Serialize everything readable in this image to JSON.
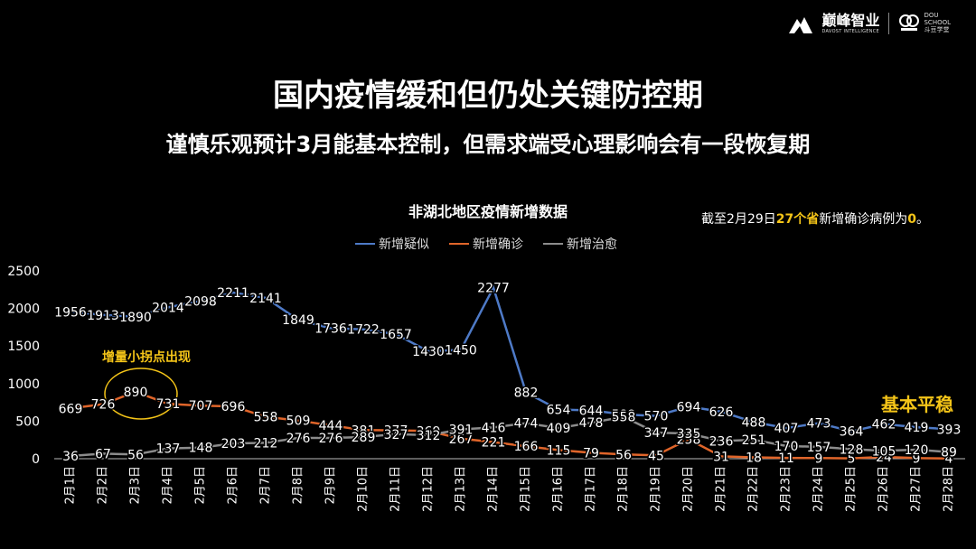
{
  "brand": {
    "name_cn": "巅峰智业",
    "name_en": "DAVOST INTELLIGENCE",
    "school_en_1": "DOU",
    "school_en_2": "SCHOOL",
    "school_cn": "斗豆学堂"
  },
  "title": "国内疫情缓和但仍处关键防控期",
  "subtitle": "谨慎乐观预计3月能基本控制，但需求端受心理影响会有一段恢复期",
  "note": {
    "prefix": "截至2月29日",
    "highlight": "27个省",
    "middle": "新增确诊病例为",
    "value": "0",
    "suffix": "。"
  },
  "annotations": {
    "inflection": "增量小拐点出现",
    "stable": "基本平稳"
  },
  "colors": {
    "suspected": "#4e7ac7",
    "confirmed": "#e0652a",
    "cured": "#8c8c8c",
    "highlight": "#f5c518"
  },
  "chart_data": {
    "type": "line",
    "title": "非湖北地区疫情新增数据",
    "categories": [
      "2月1日",
      "2月2日",
      "2月3日",
      "2月4日",
      "2月5日",
      "2月6日",
      "2月7日",
      "2月8日",
      "2月9日",
      "2月10日",
      "2月11日",
      "2月12日",
      "2月13日",
      "2月14日",
      "2月15日",
      "2月16日",
      "2月17日",
      "2月18日",
      "2月19日",
      "2月20日",
      "2月21日",
      "2月22日",
      "2月23日",
      "2月24日",
      "2月25日",
      "2月26日",
      "2月27日",
      "2月28日"
    ],
    "series": [
      {
        "name": "新增疑似",
        "values": [
          1956,
          1913,
          1890,
          2014,
          2098,
          2211,
          2141,
          1849,
          1736,
          1722,
          1657,
          1430,
          1450,
          2277,
          882,
          654,
          644,
          589,
          570,
          694,
          626,
          488,
          407,
          473,
          364,
          462,
          419,
          393
        ]
      },
      {
        "name": "新增确诊",
        "values": [
          669,
          726,
          890,
          731,
          707,
          696,
          558,
          509,
          444,
          381,
          377,
          369,
          267,
          221,
          166,
          115,
          79,
          56,
          45,
          258,
          31,
          18,
          11,
          9,
          5,
          24,
          9,
          4
        ]
      },
      {
        "name": "新增治愈",
        "values": [
          36,
          67,
          56,
          137,
          148,
          203,
          212,
          276,
          276,
          289,
          327,
          312,
          391,
          416,
          474,
          409,
          478,
          558,
          347,
          335,
          236,
          251,
          170,
          157,
          128,
          105,
          120,
          89
        ]
      }
    ],
    "ylim": [
      0,
      2500
    ],
    "yticks": [
      0,
      500,
      1000,
      1500,
      2000,
      2500
    ],
    "grid": false,
    "legend": "top-center",
    "data_labels": true
  }
}
